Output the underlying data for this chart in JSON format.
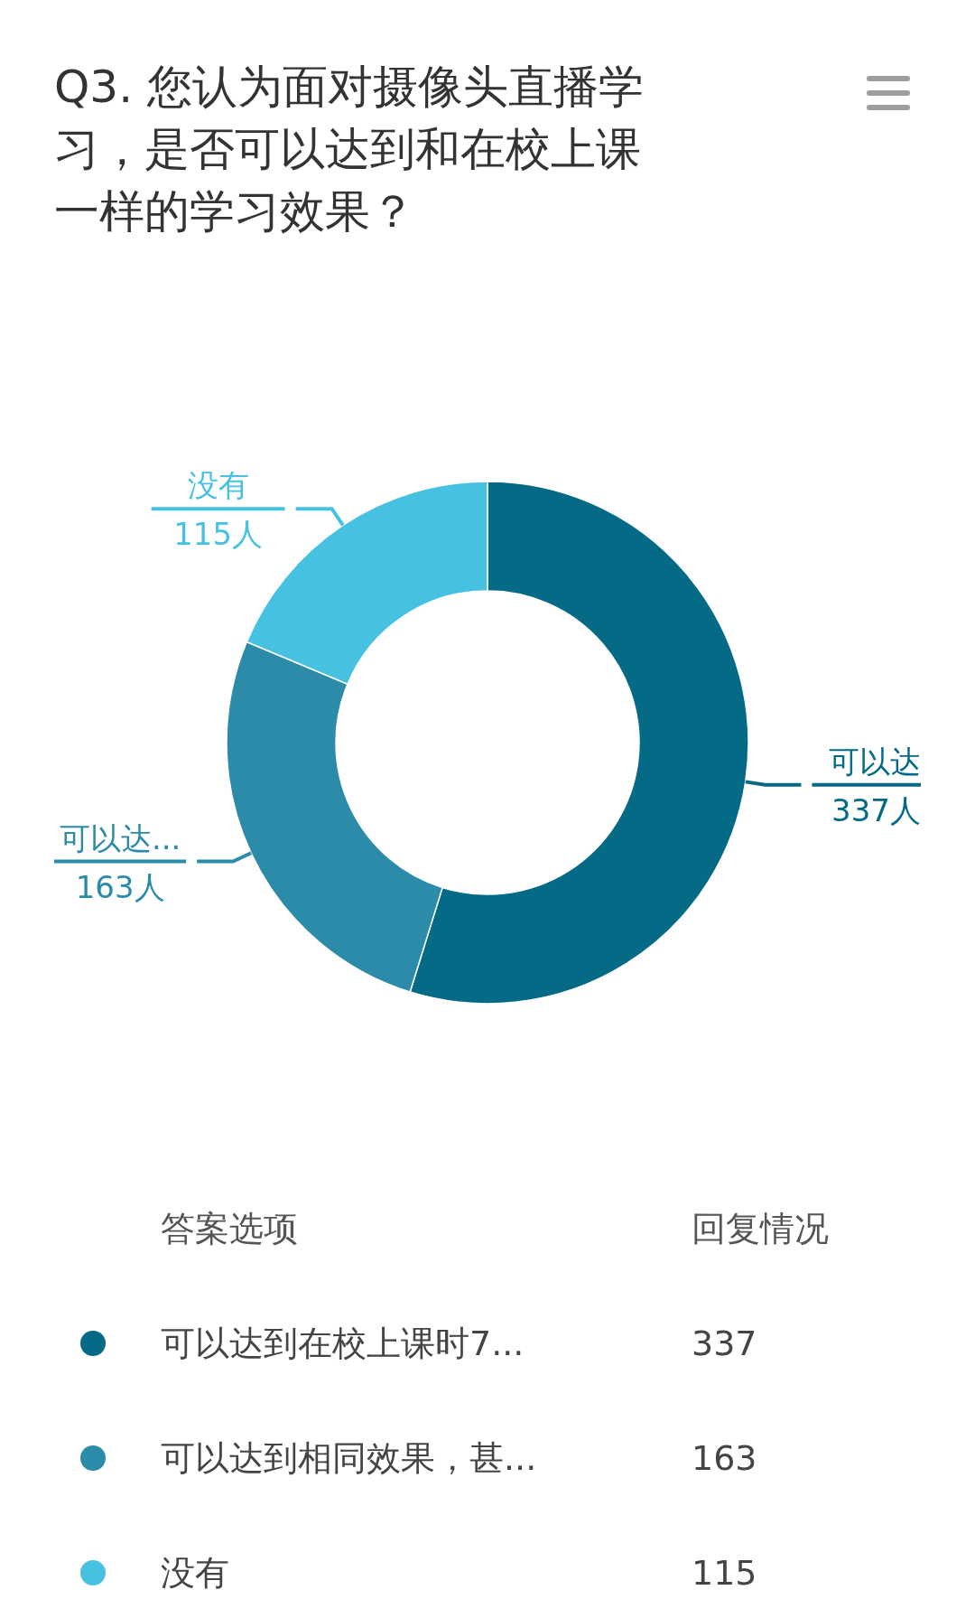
{
  "chart_data": {
    "type": "donut",
    "title": "Q3. 您认为面对摄像头直播学习，是否可以达到和在校上课一样的学习效果？",
    "categories": [
      "可以达到在校上课时7...",
      "可以达到相同效果，甚...",
      "没有"
    ],
    "values": [
      337,
      163,
      115
    ],
    "colors": [
      "#046a86",
      "#2b8ba8",
      "#47c1e2"
    ],
    "value_labels": [
      "337",
      "163",
      "115"
    ],
    "legend": "bottom",
    "legend_title": "答案选项",
    "annotations": [
      {
        "text": "可以达",
        "x": "可以达到在校上课时7..."
      },
      {
        "text": "337人",
        "x": "可以达到在校上课时7..."
      },
      {
        "text": "可以达...",
        "x": "可以达到相同效果，甚..."
      },
      {
        "text": "163人",
        "x": "可以达到相同效果，甚..."
      },
      {
        "text": "没有",
        "x": "没有"
      },
      {
        "text": "115人",
        "x": "没有"
      },
      "回复情况"
    ]
  }
}
